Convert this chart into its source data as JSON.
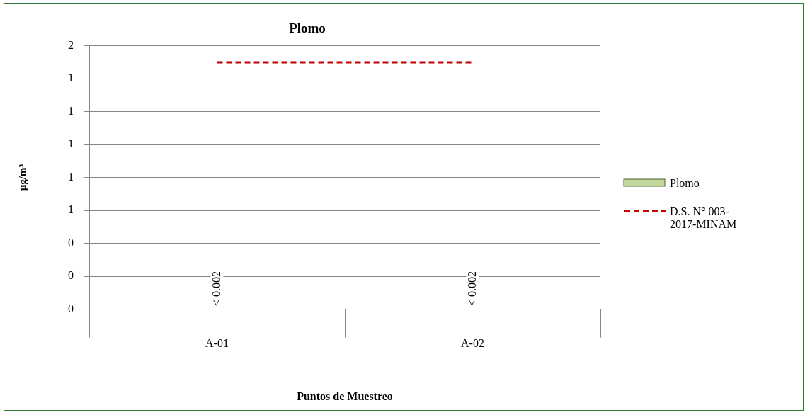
{
  "chart_data": {
    "type": "bar",
    "title": "Plomo",
    "xlabel": "Puntos de Muestreo",
    "ylabel": "µg/m³",
    "categories": [
      "A-01",
      "A-02"
    ],
    "series": [
      {
        "name": "Plomo",
        "color": "#c3d69b",
        "values": [
          0.002,
          0.002
        ],
        "value_labels": [
          "< 0.002",
          "< 0.002"
        ]
      },
      {
        "name": "D.S. N° 003-2017-MINAM",
        "type": "line",
        "color": "#c00000",
        "values": [
          1.5,
          1.5
        ],
        "line_style": "dashed",
        "marker": "none"
      }
    ],
    "ylim": [
      0,
      1.6
    ],
    "yticks": [
      {
        "value": 0,
        "label": "0"
      },
      {
        "value": 0.2,
        "label": "0"
      },
      {
        "value": 0.4,
        "label": "0"
      },
      {
        "value": 0.6,
        "label": "1"
      },
      {
        "value": 0.8,
        "label": "1"
      },
      {
        "value": 1.0,
        "label": "1"
      },
      {
        "value": 1.2,
        "label": "1"
      },
      {
        "value": 1.4,
        "label": "1"
      },
      {
        "value": 1.6,
        "label": "2"
      }
    ],
    "grid": "y",
    "legend": "right"
  }
}
